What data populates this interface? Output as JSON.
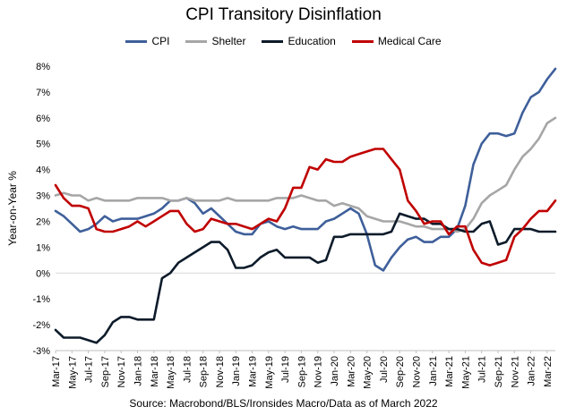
{
  "chart_data": {
    "type": "line",
    "title": "CPI Transitory Disinflation",
    "ylabel": "Year-on-Year %",
    "xlabel": "",
    "source": "Source: Macrobond/BLS/Ironsides Macro/Data as of March 2022",
    "ylim": [
      -3,
      8
    ],
    "y_ticks": [
      "-3%",
      "-2%",
      "-1%",
      "0%",
      "1%",
      "2%",
      "3%",
      "4%",
      "5%",
      "6%",
      "7%",
      "8%"
    ],
    "x_tick_labels": [
      "Mar-17",
      "May-17",
      "Jul-17",
      "Sep-17",
      "Nov-17",
      "Jan-18",
      "Mar-18",
      "May-18",
      "Jul-18",
      "Sep-18",
      "Nov-18",
      "Jan-19",
      "Mar-19",
      "May-19",
      "Jul-19",
      "Sep-19",
      "Nov-19",
      "Jan-20",
      "Mar-20",
      "May-20",
      "Jul-20",
      "Sep-20",
      "Nov-20",
      "Jan-21",
      "Mar-21",
      "May-21",
      "Jul-21",
      "Sep-21",
      "Nov-21",
      "Jan-22",
      "Mar-22"
    ],
    "legend_position": "top",
    "grid": false,
    "series": [
      {
        "name": "CPI",
        "color": "#3E5F9A",
        "values": [
          2.4,
          2.2,
          1.9,
          1.6,
          1.7,
          1.9,
          2.2,
          2.0,
          2.1,
          2.1,
          2.1,
          2.2,
          2.3,
          2.5,
          2.8,
          2.8,
          2.9,
          2.7,
          2.3,
          2.5,
          2.2,
          1.9,
          1.6,
          1.5,
          1.5,
          1.9,
          2.0,
          1.8,
          1.7,
          1.8,
          1.7,
          1.7,
          1.7,
          2.0,
          2.1,
          2.3,
          2.5,
          2.3,
          1.5,
          0.3,
          0.1,
          0.6,
          1.0,
          1.3,
          1.4,
          1.2,
          1.2,
          1.4,
          1.4,
          1.7,
          2.6,
          4.2,
          5.0,
          5.4,
          5.4,
          5.3,
          5.4,
          6.2,
          6.8,
          7.0,
          7.5,
          7.9
        ]
      },
      {
        "name": "Shelter",
        "color": "#A6A6A6",
        "values": [
          3.0,
          3.1,
          3.0,
          3.0,
          2.8,
          2.9,
          2.8,
          2.8,
          2.8,
          2.8,
          2.9,
          2.9,
          2.9,
          2.9,
          2.8,
          2.8,
          2.9,
          2.8,
          2.8,
          2.8,
          2.8,
          2.9,
          2.8,
          2.8,
          2.8,
          2.8,
          2.8,
          2.9,
          2.9,
          2.9,
          3.0,
          2.9,
          2.8,
          2.8,
          2.6,
          2.7,
          2.6,
          2.5,
          2.2,
          2.1,
          2.0,
          2.0,
          2.0,
          1.9,
          1.8,
          1.8,
          1.7,
          1.7,
          1.7,
          1.6,
          1.7,
          2.1,
          2.7,
          3.0,
          3.2,
          3.4,
          4.0,
          4.5,
          4.8,
          5.2,
          5.8,
          6.0
        ]
      },
      {
        "name": "Education",
        "color": "#0D1B2A",
        "values": [
          -2.2,
          -2.5,
          -2.5,
          -2.5,
          -2.6,
          -2.7,
          -2.4,
          -1.9,
          -1.7,
          -1.7,
          -1.8,
          -1.8,
          -1.8,
          -0.2,
          0.0,
          0.4,
          0.6,
          0.8,
          1.0,
          1.2,
          1.2,
          0.9,
          0.2,
          0.2,
          0.3,
          0.6,
          0.8,
          0.9,
          0.6,
          0.6,
          0.6,
          0.6,
          0.4,
          0.5,
          1.4,
          1.4,
          1.5,
          1.5,
          1.5,
          1.5,
          1.5,
          1.6,
          2.3,
          2.2,
          2.1,
          2.1,
          1.9,
          1.9,
          1.7,
          1.7,
          1.6,
          1.6,
          1.9,
          2.0,
          1.1,
          1.2,
          1.7,
          1.7,
          1.7,
          1.6,
          1.6,
          1.6
        ]
      },
      {
        "name": "Medical Care",
        "color": "#C00000",
        "values": [
          3.4,
          2.9,
          2.6,
          2.6,
          2.5,
          1.7,
          1.6,
          1.6,
          1.7,
          1.8,
          2.0,
          1.8,
          2.0,
          2.2,
          2.4,
          2.4,
          1.9,
          1.6,
          1.7,
          2.1,
          2.0,
          1.9,
          1.9,
          1.8,
          1.7,
          1.9,
          2.1,
          2.0,
          2.5,
          3.3,
          3.3,
          4.1,
          4.0,
          4.4,
          4.3,
          4.3,
          4.5,
          4.6,
          4.7,
          4.8,
          4.8,
          4.4,
          4.0,
          2.8,
          2.4,
          1.9,
          2.0,
          2.0,
          1.5,
          1.8,
          1.8,
          0.9,
          0.4,
          0.3,
          0.4,
          0.5,
          1.4,
          1.7,
          2.1,
          2.4,
          2.4,
          2.8
        ]
      }
    ]
  }
}
